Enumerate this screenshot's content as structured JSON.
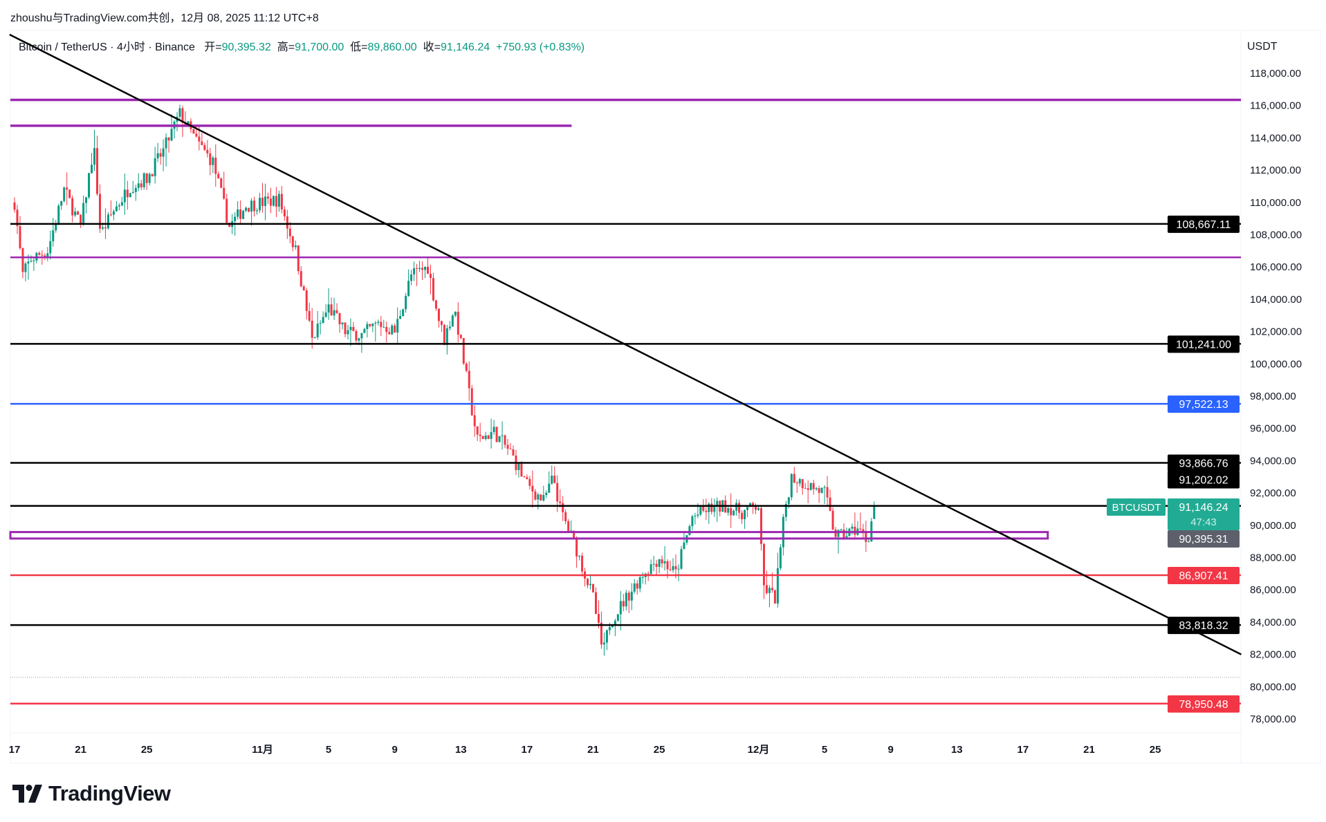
{
  "header": {
    "attribution": "zhoushu与TradingView.com共创，12月 08, 2025 11:12 UTC+8"
  },
  "legend": {
    "symbol": "Bitcoin / TetherUS · 4小时 · Binance",
    "open_label": "开=",
    "open": "90,395.32",
    "high_label": "高=",
    "high": "91,700.00",
    "low_label": "低=",
    "low": "89,860.00",
    "close_label": "收=",
    "close": "91,146.24",
    "change": "+750.93 (+0.83%)"
  },
  "logo": {
    "text": "TradingView"
  },
  "colors": {
    "up": "#089981",
    "down": "#f23645",
    "purple": "#9c27b0",
    "blue": "#2962ff",
    "red": "#f23645",
    "black": "#000000",
    "teal": "#22ab94"
  },
  "chart_data": {
    "type": "candlestick",
    "symbol": "BTCUSDT",
    "interval": "4小时",
    "currency": "USDT",
    "ylim": [
      76500,
      121000
    ],
    "yticks": [
      118000,
      116000,
      114000,
      112000,
      110000,
      108000,
      106000,
      104000,
      102000,
      100000,
      98000,
      96000,
      94000,
      92000,
      90000,
      88000,
      86000,
      84000,
      82000,
      80000,
      78000
    ],
    "ytick_labels": [
      "118,000.00",
      "116,000.00",
      "114,000.00",
      "112,000.00",
      "110,000.00",
      "108,000.00",
      "106,000.00",
      "104,000.00",
      "102,000.00",
      "100,000.00",
      "98,000.00",
      "96,000.00",
      "94,000.00",
      "92,000.00",
      "90,000.00",
      "88,000.00",
      "86,000.00",
      "84,000.00",
      "82,000.00",
      "80,000.00",
      "78,000.00"
    ],
    "x_day0": "10-17",
    "xticks": [
      {
        "day": 0,
        "label": "17"
      },
      {
        "day": 4,
        "label": "21"
      },
      {
        "day": 8,
        "label": "25"
      },
      {
        "day": 15,
        "label": "11月"
      },
      {
        "day": 19,
        "label": "5"
      },
      {
        "day": 23,
        "label": "9"
      },
      {
        "day": 27,
        "label": "13"
      },
      {
        "day": 31,
        "label": "17"
      },
      {
        "day": 35,
        "label": "21"
      },
      {
        "day": 39,
        "label": "25"
      },
      {
        "day": 45,
        "label": "12月"
      },
      {
        "day": 49,
        "label": "5"
      },
      {
        "day": 53,
        "label": "9"
      },
      {
        "day": 57,
        "label": "13"
      },
      {
        "day": 61,
        "label": "17"
      },
      {
        "day": 65,
        "label": "21"
      },
      {
        "day": 69,
        "label": "25"
      }
    ],
    "candles_per_day": 6,
    "price_path": [
      [
        0,
        110000
      ],
      [
        0.5,
        105500
      ],
      [
        1,
        106500
      ],
      [
        2,
        107000
      ],
      [
        3,
        110800
      ],
      [
        4,
        108500
      ],
      [
        4.8,
        113500
      ],
      [
        5.2,
        108000
      ],
      [
        6,
        109500
      ],
      [
        7,
        111000
      ],
      [
        8,
        111500
      ],
      [
        9,
        113200
      ],
      [
        10,
        115500
      ],
      [
        11,
        113800
      ],
      [
        12,
        112500
      ],
      [
        13,
        108500
      ],
      [
        14,
        109800
      ],
      [
        15,
        110000
      ],
      [
        16,
        110200
      ],
      [
        17,
        107000
      ],
      [
        18,
        101500
      ],
      [
        19,
        103500
      ],
      [
        20,
        102000
      ],
      [
        21,
        101800
      ],
      [
        22,
        102500
      ],
      [
        23,
        102000
      ],
      [
        24,
        105500
      ],
      [
        25,
        106000
      ],
      [
        25.6,
        103000
      ],
      [
        26,
        101500
      ],
      [
        26.6,
        103500
      ],
      [
        27,
        101200
      ],
      [
        27.6,
        97500
      ],
      [
        28,
        95300
      ],
      [
        29,
        95800
      ],
      [
        30,
        94500
      ],
      [
        31,
        92500
      ],
      [
        32,
        91500
      ],
      [
        32.6,
        93000
      ],
      [
        33,
        91000
      ],
      [
        34,
        88500
      ],
      [
        35,
        85500
      ],
      [
        35.6,
        82000
      ],
      [
        36,
        84000
      ],
      [
        37,
        85500
      ],
      [
        38,
        87000
      ],
      [
        39,
        88000
      ],
      [
        40,
        87000
      ],
      [
        41,
        90500
      ],
      [
        42,
        91000
      ],
      [
        43,
        91200
      ],
      [
        44,
        90800
      ],
      [
        45,
        91200
      ],
      [
        45.3,
        86200
      ],
      [
        46,
        85500
      ],
      [
        46.6,
        91000
      ],
      [
        47,
        93000
      ],
      [
        48,
        92500
      ],
      [
        49,
        92000
      ],
      [
        49.6,
        89500
      ],
      [
        50,
        89300
      ],
      [
        51,
        89800
      ],
      [
        51.6,
        89000
      ],
      [
        52,
        91146.24
      ]
    ],
    "horizontal_levels": [
      {
        "price": 116350,
        "color": "#9c27b0",
        "style": "solid",
        "thick": true,
        "label": ""
      },
      {
        "price": 114750,
        "color": "#9c27b0",
        "style": "solid",
        "thick": true,
        "end_day": 33.7,
        "label": ""
      },
      {
        "price": 108667.11,
        "color": "#000000",
        "style": "solid",
        "label": "108,667.11"
      },
      {
        "price": 106600,
        "color": "#9c27b0",
        "style": "solid",
        "label": ""
      },
      {
        "price": 101241.0,
        "color": "#000000",
        "style": "solid",
        "label": "101,241.00"
      },
      {
        "price": 97522.13,
        "color": "#2962ff",
        "style": "solid",
        "label": "97,522.13"
      },
      {
        "price": 93866.76,
        "color": "#000000",
        "style": "solid",
        "label": "93,866.76"
      },
      {
        "price": 91202.02,
        "color": "#000000",
        "style": "solid",
        "label": "91,202.02",
        "label_offset": -1
      },
      {
        "price": 86907.41,
        "color": "#f23645",
        "style": "solid",
        "label": "86,907.41"
      },
      {
        "price": 83818.32,
        "color": "#000000",
        "style": "solid",
        "label": "83,818.32"
      },
      {
        "price": 80580,
        "color": "#9598a1",
        "style": "dotted",
        "label": ""
      },
      {
        "price": 78950.48,
        "color": "#f23645",
        "style": "solid",
        "label": "78,950.48"
      }
    ],
    "zone": {
      "top": 89580,
      "bottom": 89180,
      "end_day": 62.5,
      "color": "#9c27b0"
    },
    "trendline": {
      "start": [
        -0.3,
        120400
      ],
      "end": [
        74.2,
        82000
      ],
      "color": "#000000"
    },
    "last_price": {
      "symbol_tag": "BTCUSDT",
      "price": 91146.24,
      "label": "91,146.24",
      "countdown": "47:43"
    },
    "prev_open": {
      "price": 90395.31,
      "label": "90,395.31"
    }
  }
}
